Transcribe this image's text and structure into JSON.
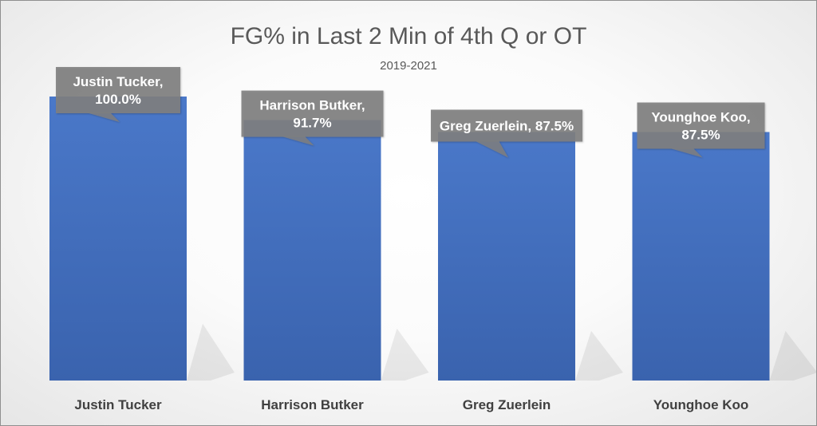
{
  "chart_data": {
    "type": "bar",
    "title": "FG% in Last 2 Min of 4th Q or OT",
    "subtitle": "2019-2021",
    "categories": [
      "Justin Tucker",
      "Harrison Butker",
      "Greg Zuerlein",
      "Younghoe Koo"
    ],
    "values": [
      100.0,
      91.7,
      87.5,
      87.5
    ],
    "data_labels": [
      [
        "Justin Tucker,",
        "100.0%"
      ],
      [
        "Harrison Butker,",
        "91.7%"
      ],
      [
        "Greg Zuerlein, 87.5%"
      ],
      [
        "Younghoe Koo,",
        "87.5%"
      ]
    ],
    "xlabel": "",
    "ylabel": "",
    "grid": false,
    "legend": "none",
    "bar_color": "#4472c4",
    "label_color": "#7f7f7f"
  }
}
